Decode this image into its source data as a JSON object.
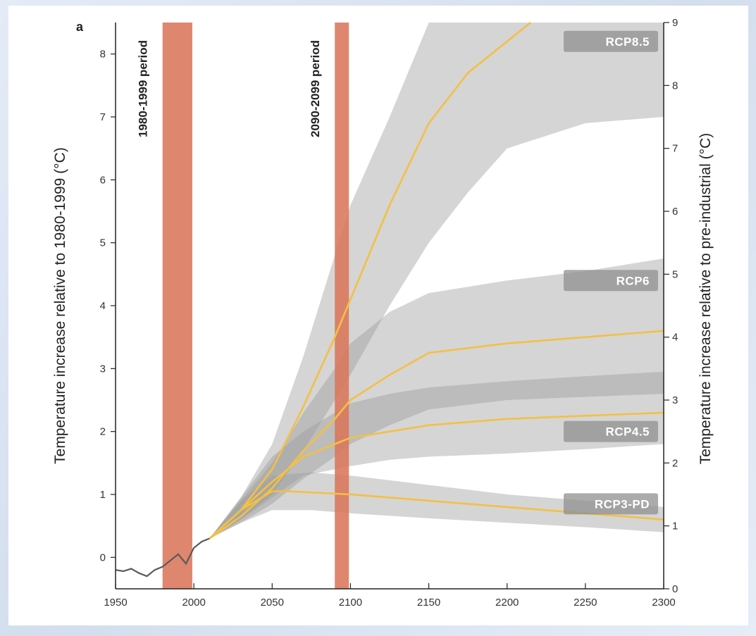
{
  "chart_data": {
    "type": "line",
    "panel_label": "a",
    "xlabel": "",
    "ylabel": "Temperature increase relative to 1980-1999 (°C)",
    "y2label": "Temperature increase relative to pre-industrial (°C)",
    "xlim": [
      1950,
      2300
    ],
    "ylim": [
      -0.5,
      8.5
    ],
    "y2lim": [
      0,
      9
    ],
    "x_ticks": [
      1950,
      2000,
      2050,
      2100,
      2150,
      2200,
      2250,
      2300
    ],
    "y_ticks": [
      0,
      1,
      2,
      3,
      4,
      5,
      6,
      7,
      8
    ],
    "y2_ticks": [
      0,
      1,
      2,
      3,
      4,
      5,
      6,
      7,
      8,
      9
    ],
    "grid": false,
    "periods": [
      {
        "label": "1980-1999 period",
        "start": 1980,
        "end": 1999,
        "color": "#d9765a"
      },
      {
        "label": "2090-2099 period",
        "start": 2090,
        "end": 2099,
        "color": "#d9765a"
      }
    ],
    "historical": {
      "x": [
        1950,
        1955,
        1960,
        1965,
        1970,
        1975,
        1980,
        1985,
        1990,
        1995,
        2000,
        2005,
        2010
      ],
      "y": [
        -0.2,
        -0.22,
        -0.18,
        -0.25,
        -0.3,
        -0.2,
        -0.15,
        -0.05,
        0.05,
        -0.1,
        0.15,
        0.25,
        0.3
      ]
    },
    "series": [
      {
        "name": "RCP8.5",
        "color": "#f3c043",
        "x": [
          2010,
          2030,
          2050,
          2070,
          2090,
          2100,
          2125,
          2150,
          2175,
          2200,
          2215
        ],
        "y": [
          0.3,
          0.75,
          1.4,
          2.4,
          3.5,
          4.1,
          5.6,
          6.9,
          7.7,
          8.2,
          8.5
        ],
        "band_x": [
          2010,
          2030,
          2050,
          2070,
          2090,
          2100,
          2125,
          2150,
          2175,
          2200,
          2250,
          2300
        ],
        "band_low": [
          0.3,
          0.6,
          1.0,
          1.7,
          2.5,
          2.9,
          4.0,
          5.0,
          5.8,
          6.5,
          6.9,
          7.0
        ],
        "band_high": [
          0.3,
          0.95,
          1.8,
          3.2,
          4.8,
          5.6,
          7.0,
          8.5,
          8.5,
          8.5,
          8.5,
          8.5
        ]
      },
      {
        "name": "RCP6",
        "color": "#f3c043",
        "x": [
          2010,
          2030,
          2050,
          2070,
          2090,
          2100,
          2125,
          2150,
          2200,
          2250,
          2300
        ],
        "y": [
          0.3,
          0.65,
          1.1,
          1.7,
          2.2,
          2.5,
          2.9,
          3.25,
          3.4,
          3.5,
          3.6
        ],
        "band_x": [
          2010,
          2030,
          2050,
          2070,
          2090,
          2100,
          2125,
          2150,
          2200,
          2250,
          2300
        ],
        "band_low": [
          0.3,
          0.55,
          0.85,
          1.25,
          1.6,
          1.8,
          2.1,
          2.35,
          2.5,
          2.55,
          2.6
        ],
        "band_high": [
          0.3,
          0.9,
          1.5,
          2.3,
          3.0,
          3.4,
          3.9,
          4.2,
          4.4,
          4.55,
          4.75
        ]
      },
      {
        "name": "RCP4.5",
        "color": "#f3c043",
        "x": [
          2010,
          2030,
          2050,
          2070,
          2090,
          2100,
          2125,
          2150,
          2200,
          2250,
          2300
        ],
        "y": [
          0.3,
          0.75,
          1.2,
          1.6,
          1.8,
          1.9,
          2.0,
          2.1,
          2.2,
          2.25,
          2.3
        ],
        "band_x": [
          2010,
          2030,
          2050,
          2070,
          2090,
          2100,
          2125,
          2150,
          2200,
          2250,
          2300
        ],
        "band_low": [
          0.3,
          0.6,
          0.95,
          1.3,
          1.4,
          1.45,
          1.55,
          1.6,
          1.65,
          1.72,
          1.8
        ],
        "band_high": [
          0.3,
          0.95,
          1.6,
          2.0,
          2.3,
          2.45,
          2.6,
          2.7,
          2.8,
          2.88,
          2.95
        ]
      },
      {
        "name": "RCP3-PD",
        "color": "#f3c043",
        "x": [
          2010,
          2030,
          2050,
          2060,
          2100,
          2150,
          2200,
          2250,
          2300
        ],
        "y": [
          0.3,
          0.75,
          1.05,
          1.05,
          1.0,
          0.9,
          0.8,
          0.7,
          0.6
        ],
        "band_x": [
          2010,
          2030,
          2050,
          2075,
          2100,
          2150,
          2200,
          2250,
          2300
        ],
        "band_low": [
          0.3,
          0.55,
          0.75,
          0.75,
          0.7,
          0.62,
          0.55,
          0.48,
          0.4
        ],
        "band_high": [
          0.3,
          0.9,
          1.3,
          1.35,
          1.3,
          1.15,
          1.0,
          0.9,
          0.8
        ]
      }
    ]
  }
}
